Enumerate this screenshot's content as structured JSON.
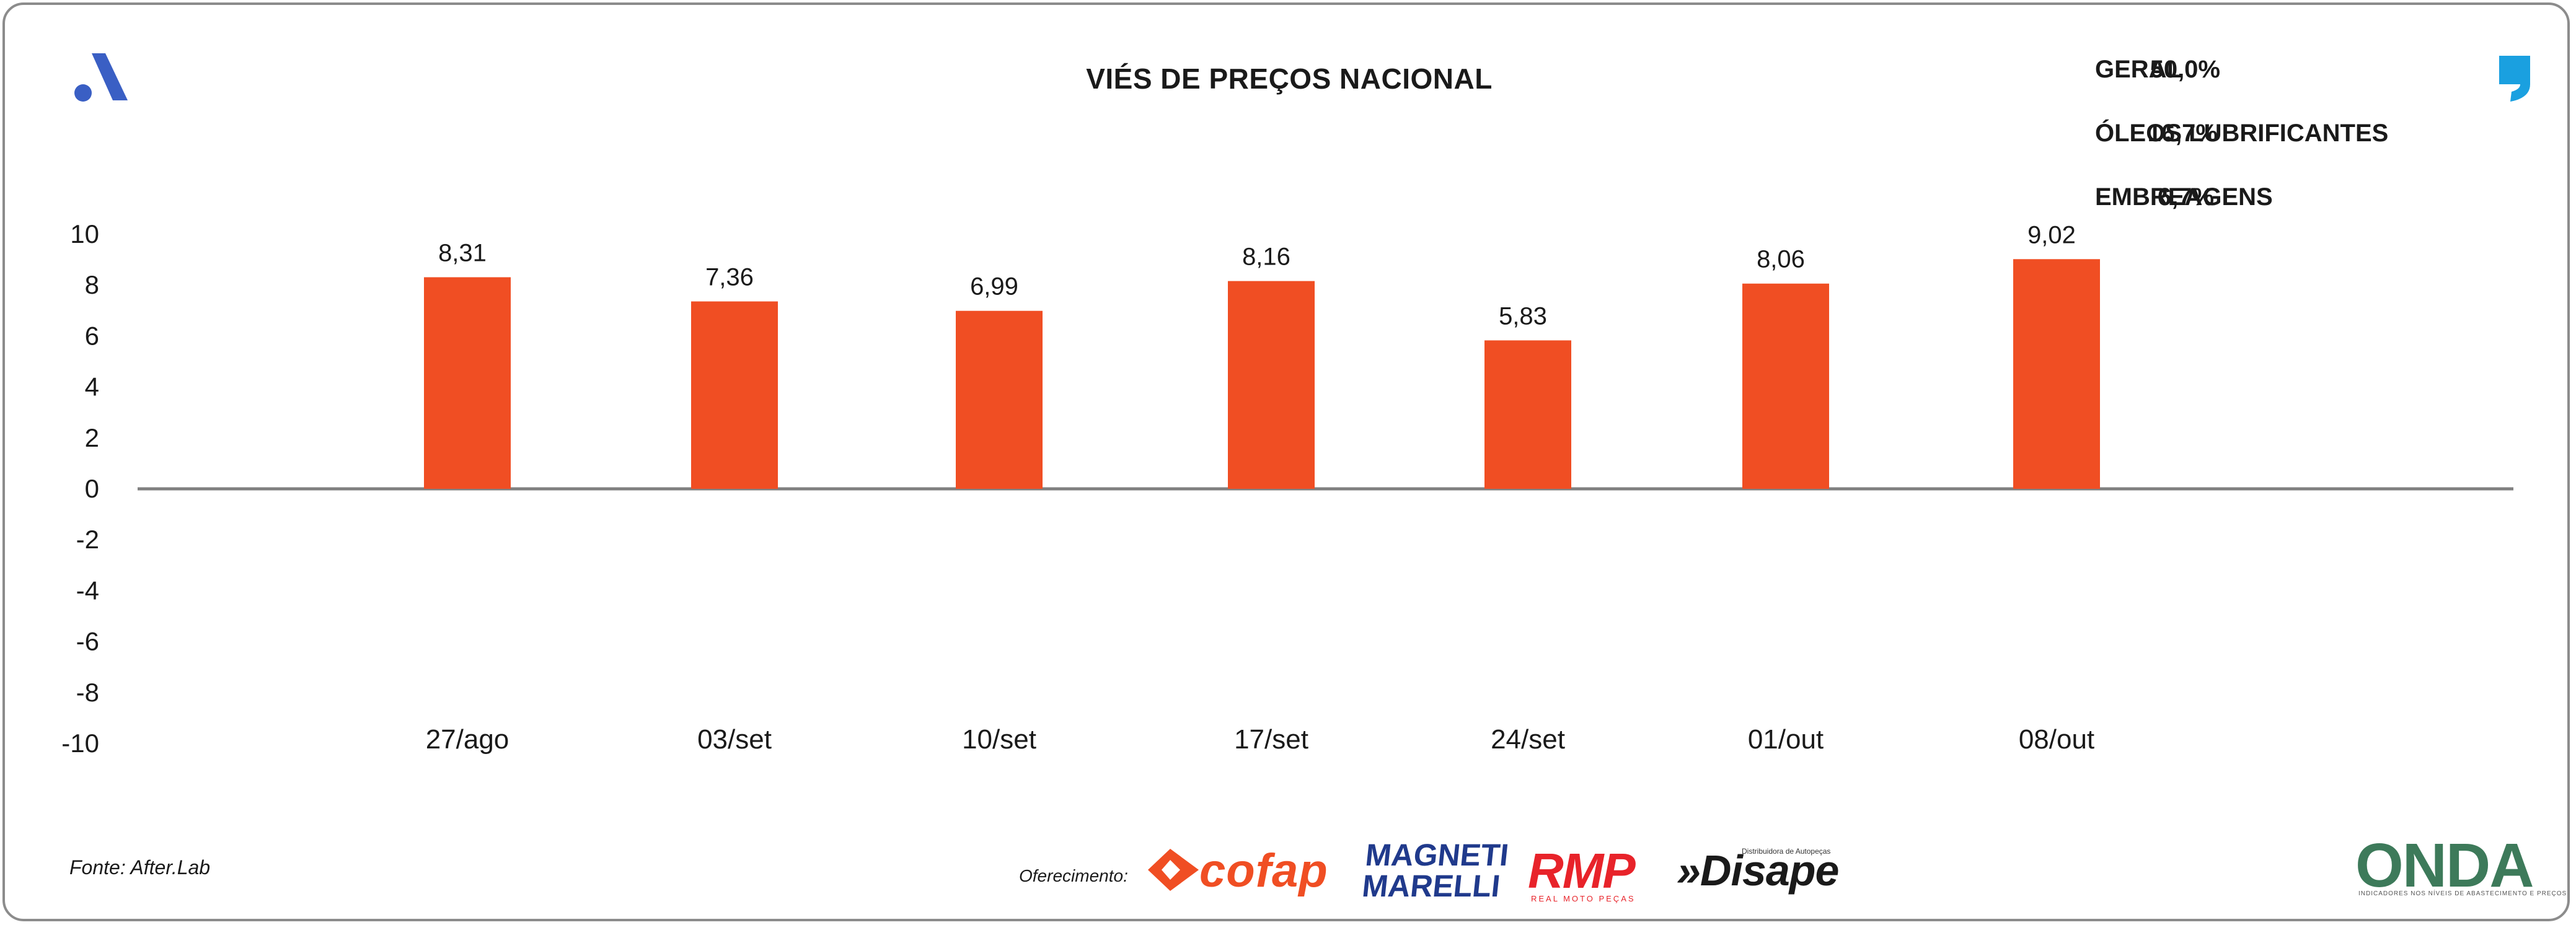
{
  "title": "VIÉS DE PREÇOS NACIONAL",
  "stats": [
    {
      "label": "GERAL",
      "value": "50,0%"
    },
    {
      "label": "ÓLEOS LUBRIFICANTES",
      "value": "16,7%"
    },
    {
      "label": "EMBREAGENS",
      "value": "6,7%"
    }
  ],
  "source": "Fonte: After.Lab",
  "sponsor_label": "Oferecimento:",
  "sponsors": {
    "cofap": "cofap",
    "magneti_line1": "MAGNETI",
    "magneti_line2": "MARELLI",
    "rmp": "RMP",
    "rmp_sub": "REAL MOTO PEÇAS",
    "disape": "»Disape",
    "disape_sub": "Distribuidora de Autopeças",
    "onda": "ONDA",
    "onda_sub": "INDICADORES NOS NÍVEIS DE ABASTECIMENTO E PREÇOS"
  },
  "colors": {
    "bar": "#f04e23",
    "axis": "#808080",
    "brand_blue": "#3a5fc4",
    "quote_blue": "#1aa0e0"
  },
  "icons": {
    "brand_logo": "stylized-a-logo-icon",
    "quote": "quote-mark-icon"
  },
  "chart_data": {
    "type": "bar",
    "title": "VIÉS DE PREÇOS NACIONAL",
    "categories": [
      "27/ago",
      "03/set",
      "10/set",
      "17/set",
      "24/set",
      "01/out",
      "08/out"
    ],
    "values": [
      8.31,
      7.36,
      6.99,
      8.16,
      5.83,
      8.06,
      9.02
    ],
    "value_labels": [
      "8,31",
      "7,36",
      "6,99",
      "8,16",
      "5,83",
      "8,06",
      "9,02"
    ],
    "ylim": [
      -10,
      10
    ],
    "yticks": [
      10,
      8,
      6,
      4,
      2,
      0,
      -2,
      -4,
      -6,
      -8,
      -10
    ],
    "xlabel": "",
    "ylabel": "",
    "grid": false,
    "legend": "none"
  }
}
